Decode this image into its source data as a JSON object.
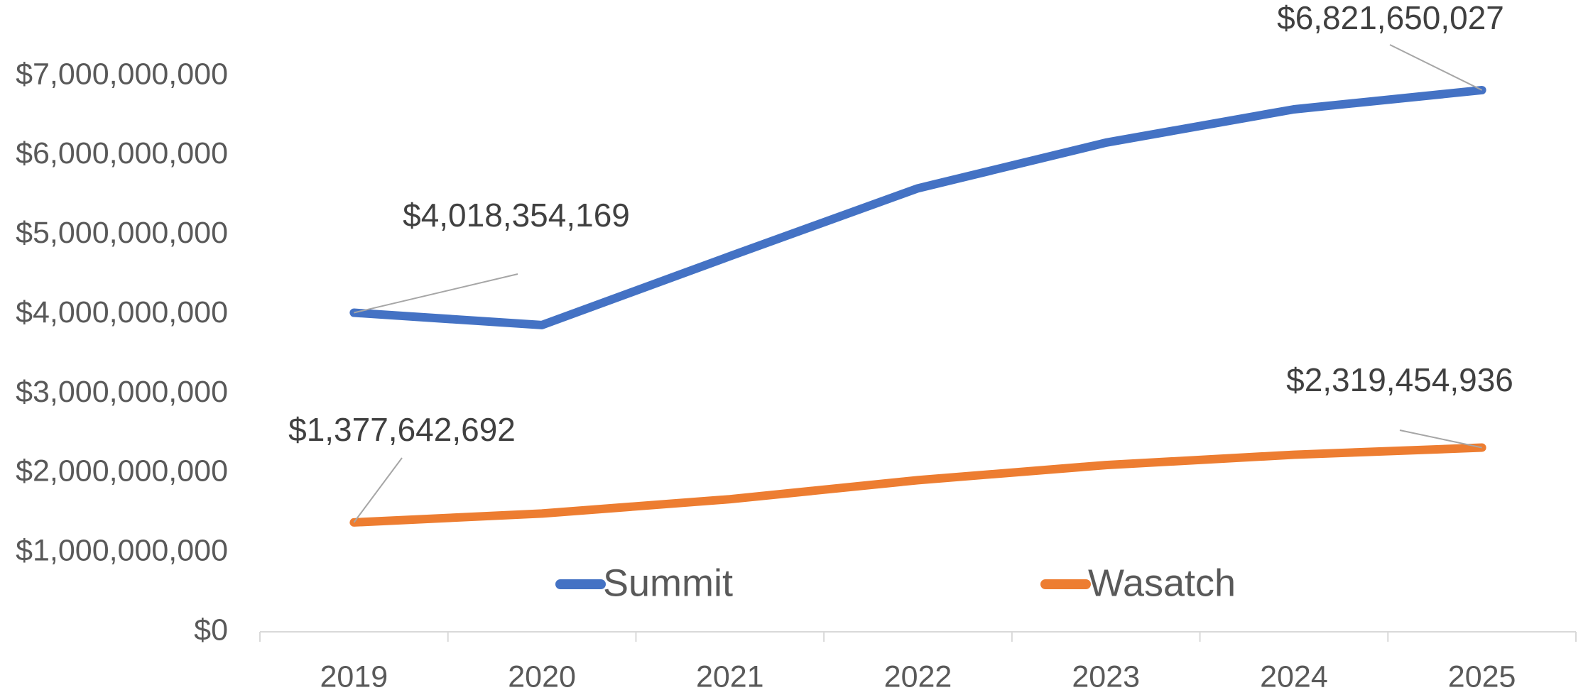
{
  "chart_data": {
    "type": "line",
    "categories": [
      "2019",
      "2020",
      "2021",
      "2022",
      "2023",
      "2024",
      "2025"
    ],
    "series": [
      {
        "name": "Summit",
        "color": "#4472c4",
        "values": [
          4018354169,
          3863000000,
          4730000000,
          5585000000,
          6160000000,
          6580000000,
          6821650027
        ],
        "value_labels": [
          "$4,018,354,169",
          null,
          null,
          null,
          null,
          null,
          "$6,821,650,027"
        ]
      },
      {
        "name": "Wasatch",
        "color": "#ed7d31",
        "values": [
          1377642692,
          1490000000,
          1670000000,
          1910000000,
          2100000000,
          2230000000,
          2319454936
        ],
        "value_labels": [
          "$1,377,642,692",
          null,
          null,
          null,
          null,
          null,
          "$2,319,454,936"
        ]
      }
    ],
    "ylim": [
      0,
      7000000000
    ],
    "yticks": [
      {
        "value": 0,
        "label": "$0"
      },
      {
        "value": 1000000000,
        "label": "$1,000,000,000"
      },
      {
        "value": 2000000000,
        "label": "$2,000,000,000"
      },
      {
        "value": 3000000000,
        "label": "$3,000,000,000"
      },
      {
        "value": 4000000000,
        "label": "$4,000,000,000"
      },
      {
        "value": 5000000000,
        "label": "$5,000,000,000"
      },
      {
        "value": 6000000000,
        "label": "$6,000,000,000"
      },
      {
        "value": 7000000000,
        "label": "$7,000,000,000"
      }
    ],
    "grid": false,
    "legend": "bottom"
  }
}
